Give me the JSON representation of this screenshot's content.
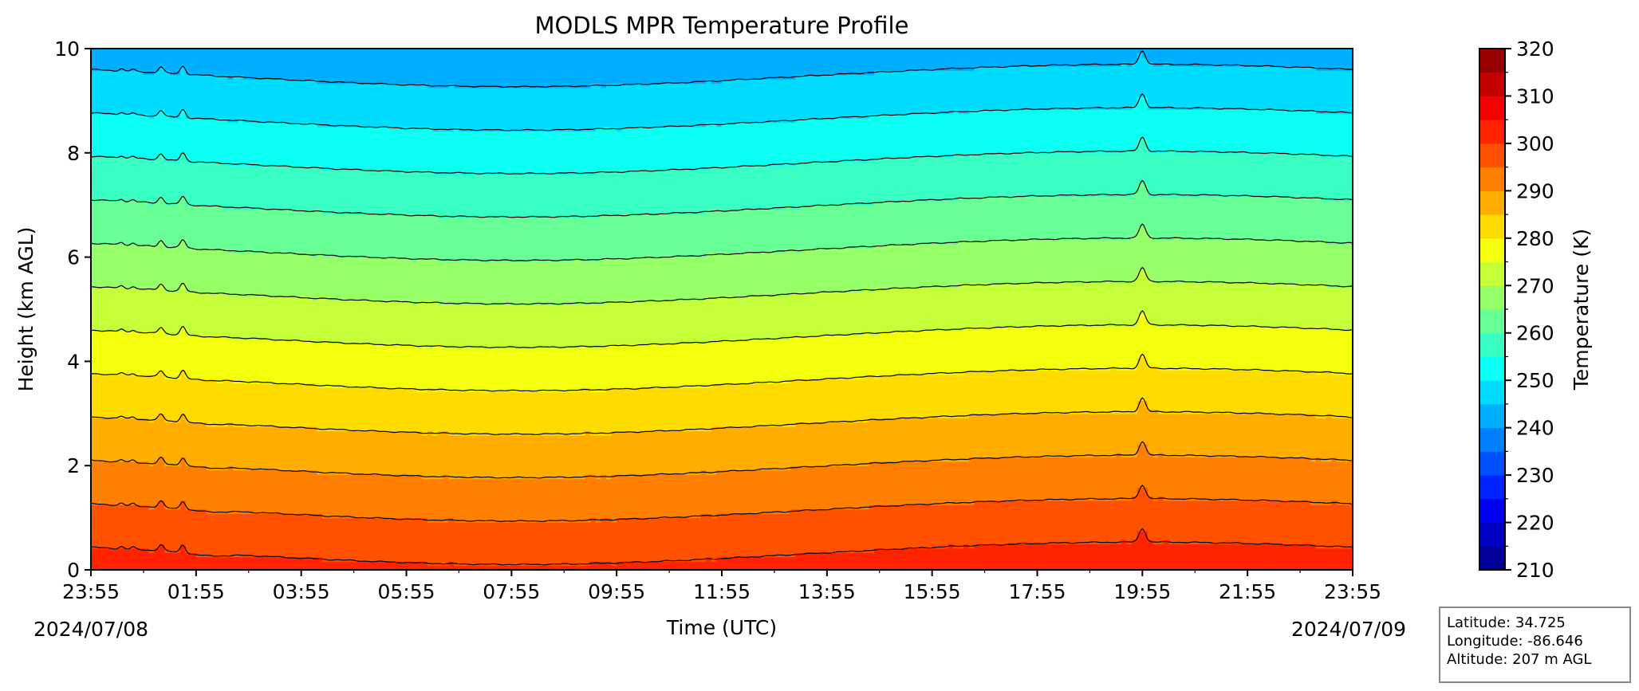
{
  "chart_data": {
    "type": "heatmap",
    "title": "MODLS MPR Temperature Profile",
    "xlabel": "Time (UTC)",
    "ylabel": "Height (km AGL)",
    "x_ticks": [
      "23:55",
      "01:55",
      "03:55",
      "05:55",
      "07:55",
      "09:55",
      "11:55",
      "13:55",
      "15:55",
      "17:55",
      "19:55",
      "21:55",
      "23:55"
    ],
    "x_range_hours": [
      0,
      24
    ],
    "y_ticks": [
      "0",
      "2",
      "4",
      "6",
      "8",
      "10"
    ],
    "ylim": [
      0,
      10
    ],
    "start_date": "2024/07/08",
    "end_date": "2024/07/09",
    "colorbar": {
      "label": "Temperature (K)",
      "ticks": [
        "210",
        "220",
        "230",
        "240",
        "250",
        "260",
        "270",
        "280",
        "290",
        "300",
        "310",
        "320"
      ],
      "range": [
        210,
        320
      ],
      "step": 5,
      "colormap": "jet"
    },
    "contour_interval_K": 5,
    "surface_temperature_K": 302,
    "lapse_rate_K_per_km": 6.0,
    "disturbance_times_utc": [
      "01:15",
      "01:40",
      "19:55"
    ]
  },
  "station": {
    "latitude": "Latitude: 34.725",
    "longitude": "Longitude: -86.646",
    "altitude": "Altitude: 207 m AGL"
  }
}
